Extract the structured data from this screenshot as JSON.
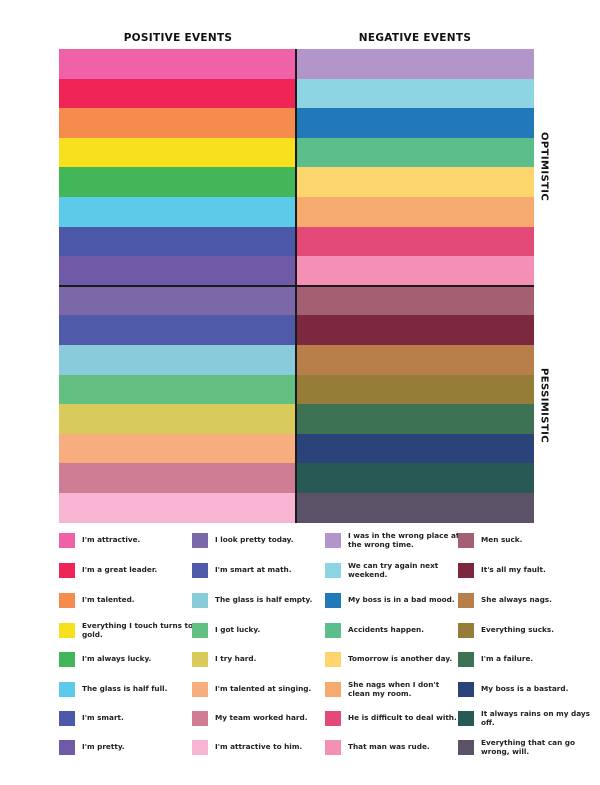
{
  "headers": {
    "positive": "POSITIVE EVENTS",
    "negative": "NEGATIVE EVENTS",
    "optimistic": "OPTIMISTIC",
    "pessimistic": "PESSIMISTIC"
  },
  "legend": [
    {
      "text": "I'm attractive.",
      "color": "#f062a8"
    },
    {
      "text": "I'm a great leader.",
      "color": "#ee2556"
    },
    {
      "text": "I'm talented.",
      "color": "#f58b4c"
    },
    {
      "text": "Everything I touch turns to gold.",
      "color": "#f7e11e"
    },
    {
      "text": "I'm always lucky.",
      "color": "#43b65a"
    },
    {
      "text": "The glass is half full.",
      "color": "#5ccbea"
    },
    {
      "text": "I'm smart.",
      "color": "#4c59a8"
    },
    {
      "text": "I'm pretty.",
      "color": "#7059a7"
    },
    {
      "text": "I look pretty today.",
      "color": "#7b68a9"
    },
    {
      "text": "I'm smart at math.",
      "color": "#4f5aa8"
    },
    {
      "text": "The glass is half empty.",
      "color": "#8acbdb"
    },
    {
      "text": "I got lucky.",
      "color": "#64c082"
    },
    {
      "text": "I try hard.",
      "color": "#d8cb5b"
    },
    {
      "text": "I'm talented at singing.",
      "color": "#f8ad7f"
    },
    {
      "text": "My team worked hard.",
      "color": "#cf7d95"
    },
    {
      "text": "I'm attractive to him.",
      "color": "#f7b5d3"
    },
    {
      "text": "I was in the wrong place at the wrong time.",
      "color": "#b296c9"
    },
    {
      "text": "We can try again next weekend.",
      "color": "#8dd5e2"
    },
    {
      "text": "My boss is in a bad mood.",
      "color": "#2279b9"
    },
    {
      "text": "Accidents happen.",
      "color": "#5bbe8b"
    },
    {
      "text": "Tomorrow is another day.",
      "color": "#fcd66c"
    },
    {
      "text": "She nags when I don't clean my room.",
      "color": "#f6ab6e"
    },
    {
      "text": "He is difficult to deal with.",
      "color": "#e44a77"
    },
    {
      "text": "That man was rude.",
      "color": "#f48fb6"
    },
    {
      "text": "Men suck.",
      "color": "#a46073"
    },
    {
      "text": "It's all my fault.",
      "color": "#7c2940"
    },
    {
      "text": "She always nags.",
      "color": "#b97f4a"
    },
    {
      "text": "Everything sucks.",
      "color": "#957d38"
    },
    {
      "text": "I'm a failure.",
      "color": "#3e7254"
    },
    {
      "text": "My boss is a bastard.",
      "color": "#2c4379"
    },
    {
      "text": "It always rains on my days off.",
      "color": "#285954"
    },
    {
      "text": "Everything that can go wrong, will.",
      "color": "#5c5268"
    }
  ]
}
